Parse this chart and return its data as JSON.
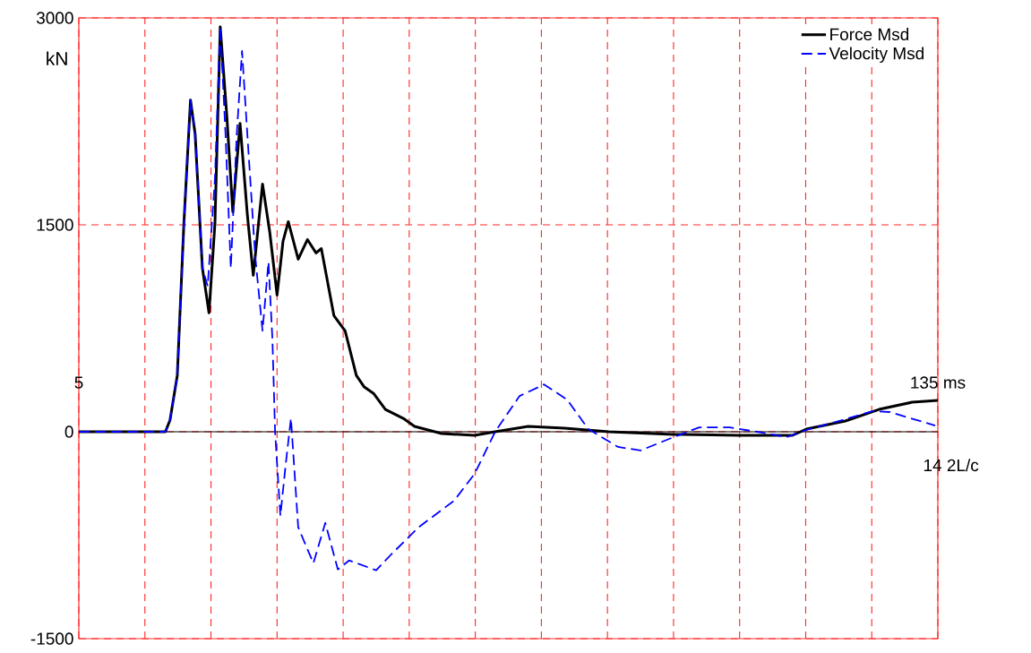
{
  "chart_data": {
    "type": "line",
    "ylabel": "kN",
    "xlim": [
      5,
      135
    ],
    "ylim": [
      -1500,
      3000
    ],
    "xticks": [
      {
        "value": 5,
        "label": "5"
      },
      {
        "value": 15,
        "label": null
      },
      {
        "value": 25,
        "label": null
      },
      {
        "value": 35,
        "label": null
      },
      {
        "value": 45,
        "label": null
      },
      {
        "value": 55,
        "label": null
      },
      {
        "value": 65,
        "label": null
      },
      {
        "value": 75,
        "label": null
      },
      {
        "value": 85,
        "label": null
      },
      {
        "value": 95,
        "label": null
      },
      {
        "value": 105,
        "label": null
      },
      {
        "value": 115,
        "label": null
      },
      {
        "value": 125,
        "label": null
      },
      {
        "value": 135,
        "label": "135 ms"
      }
    ],
    "yticks": [
      -1500,
      0,
      1500,
      3000
    ],
    "grid": true,
    "legend": "top right",
    "annotations": [
      "14 2L/c"
    ],
    "series": [
      {
        "name": "Force Msd",
        "color": "#000000",
        "line_style": "solid",
        "x": [
          5,
          18.1,
          18.8,
          19.9,
          20.9,
          21.9,
          22.6,
          23.7,
          24.7,
          25.6,
          26.4,
          27.4,
          28.3,
          29.4,
          30.5,
          31.4,
          32.8,
          33.9,
          35.0,
          35.9,
          36.7,
          38.2,
          39.6,
          40.9,
          41.7,
          43.6,
          45.3,
          47.0,
          48.2,
          49.6,
          51.4,
          54.1,
          55.8,
          59.9,
          64.9,
          68.0,
          73.0,
          78.5,
          85.2,
          95.0,
          105.0,
          113.0,
          115.1,
          121.0,
          126.1,
          131.1,
          135
        ],
        "values": [
          0,
          0,
          84,
          408,
          1510,
          2405,
          2158,
          1186,
          862,
          1510,
          2935,
          2287,
          1594,
          2236,
          1575,
          1134,
          1795,
          1445,
          991,
          1380,
          1523,
          1251,
          1393,
          1296,
          1328,
          842,
          732,
          408,
          324,
          278,
          162,
          97,
          39,
          -13,
          -26,
          0,
          39,
          26,
          0,
          -19,
          -26,
          -26,
          19,
          78,
          162,
          214,
          227
        ]
      },
      {
        "name": "Velocity Msd",
        "color": "#0000ff",
        "line_style": "dashed",
        "x": [
          5,
          18.1,
          18.8,
          19.9,
          20.9,
          21.9,
          22.6,
          23.7,
          24.5,
          25.6,
          26.4,
          27.2,
          28.0,
          28.9,
          29.7,
          30.5,
          31.7,
          32.8,
          33.7,
          34.3,
          34.7,
          35.5,
          36.3,
          37.1,
          38.2,
          40.5,
          42.3,
          44.2,
          45.9,
          50.0,
          52.3,
          56.4,
          61.8,
          64.9,
          68.0,
          71.7,
          75.4,
          78.9,
          82.1,
          86.6,
          90.0,
          94.7,
          98.9,
          103.5,
          108.3,
          112.1,
          115.1,
          120.5,
          125.1,
          127.7,
          134.6
        ],
        "values": [
          0,
          0,
          84,
          408,
          1510,
          2405,
          2158,
          1186,
          1056,
          1834,
          2935,
          2158,
          1186,
          2158,
          2760,
          2158,
          1270,
          732,
          1231,
          667,
          0,
          -609,
          -240,
          97,
          -693,
          -953,
          -661,
          -998,
          -933,
          -1004,
          -888,
          -693,
          -499,
          -305,
          0,
          259,
          343,
          233,
          19,
          -110,
          -136,
          -45,
          32,
          32,
          -6,
          -39,
          13,
          84,
          149,
          143,
          45
        ]
      }
    ]
  }
}
